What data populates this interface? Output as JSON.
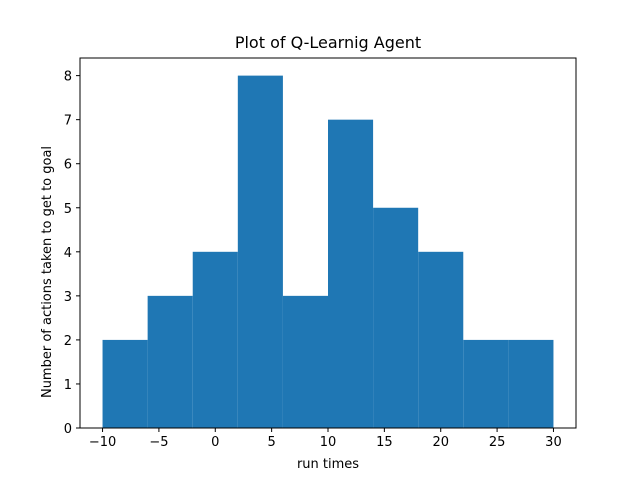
{
  "chart_data": {
    "type": "bar",
    "title": "Plot of Q-Learnig Agent",
    "xlabel": "run times",
    "ylabel": "Number of actions taken to get to goal",
    "bins": [
      {
        "x0": -10,
        "x1": -6,
        "value": 2
      },
      {
        "x0": -6,
        "x1": -2,
        "value": 3
      },
      {
        "x0": -2,
        "x1": 2,
        "value": 4
      },
      {
        "x0": 2,
        "x1": 6,
        "value": 8
      },
      {
        "x0": 6,
        "x1": 10,
        "value": 3
      },
      {
        "x0": 10,
        "x1": 14,
        "value": 7
      },
      {
        "x0": 14,
        "x1": 18,
        "value": 5
      },
      {
        "x0": 18,
        "x1": 22,
        "value": 4
      },
      {
        "x0": 22,
        "x1": 26,
        "value": 2
      },
      {
        "x0": 26,
        "x1": 30,
        "value": 2
      }
    ],
    "xlim": [
      -12,
      32
    ],
    "ylim": [
      0,
      8.4
    ],
    "xticks": [
      -10,
      -5,
      0,
      5,
      10,
      15,
      20,
      25,
      30
    ],
    "xtick_labels": [
      "−10",
      "−5",
      "0",
      "5",
      "10",
      "15",
      "20",
      "25",
      "30"
    ],
    "yticks": [
      0,
      1,
      2,
      3,
      4,
      5,
      6,
      7,
      8
    ],
    "ytick_labels": [
      "0",
      "1",
      "2",
      "3",
      "4",
      "5",
      "6",
      "7",
      "8"
    ],
    "grid": false,
    "bar_color": "#1f77b4"
  }
}
